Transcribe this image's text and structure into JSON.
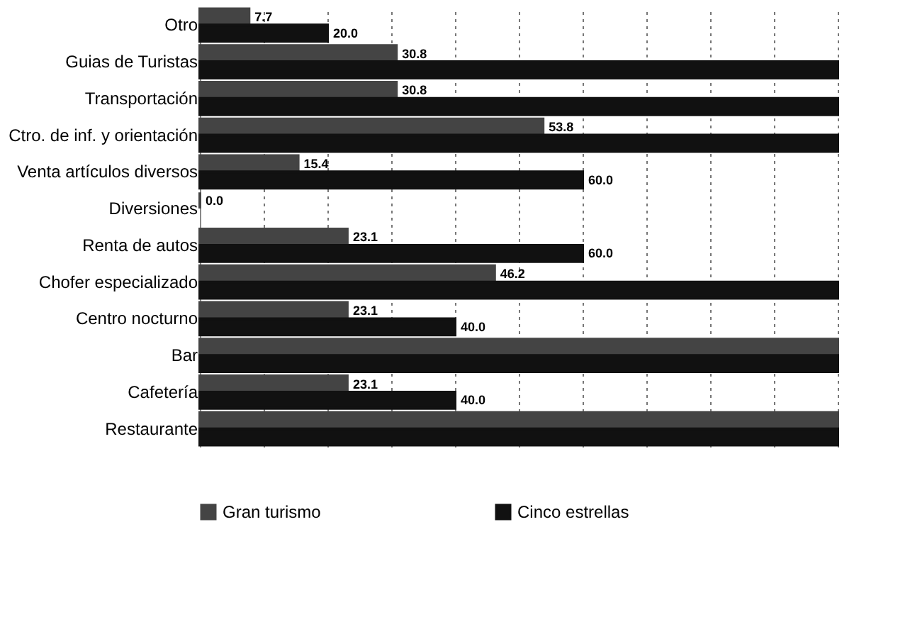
{
  "chart_data": {
    "type": "bar",
    "orientation": "horizontal",
    "categories": [
      "Otro",
      "Guias de Turistas",
      "Transportación",
      "Ctro. de inf. y orientación",
      "Venta artículos diversos",
      "Diversiones",
      "Renta de autos",
      "Chofer especializado",
      "Centro nocturno",
      "Bar",
      "Cafetería",
      "Restaurante"
    ],
    "series": [
      {
        "name": "Gran turismo",
        "color": "#444444",
        "values": [
          7.7,
          30.8,
          30.8,
          53.8,
          15.4,
          0.0,
          23.1,
          46.2,
          23.1,
          100,
          23.1,
          100
        ],
        "value_labels": [
          "7.7",
          "30.8",
          "30.8",
          "53.8",
          "15.4",
          "0.0",
          "23.1",
          "46.2",
          "23.1",
          null,
          "23.1",
          null
        ]
      },
      {
        "name": "Cinco estrellas",
        "color": "#111111",
        "values": [
          20.0,
          100,
          100,
          100,
          60.0,
          null,
          60.0,
          100,
          40.0,
          100,
          40.0,
          100
        ],
        "value_labels": [
          "20.0",
          null,
          null,
          null,
          "60.0",
          null,
          "60.0",
          null,
          "40.0",
          null,
          "40.0",
          null
        ]
      }
    ],
    "xlim": [
      0,
      100
    ],
    "xticks": [
      {
        "value": 0,
        "label": null
      },
      {
        "value": 10,
        "label": null
      },
      {
        "value": 20,
        "label": null
      },
      {
        "value": 30,
        "label": null
      },
      {
        "value": 40,
        "label": null
      },
      {
        "value": 50,
        "label": null
      },
      {
        "value": 60,
        "label": null
      },
      {
        "value": 70,
        "label": null
      },
      {
        "value": 80,
        "label": null
      },
      {
        "value": 90,
        "label": null
      },
      {
        "value": 100,
        "label": null
      }
    ],
    "tick_labels": "y",
    "grid": "x",
    "legend": "bottom"
  }
}
